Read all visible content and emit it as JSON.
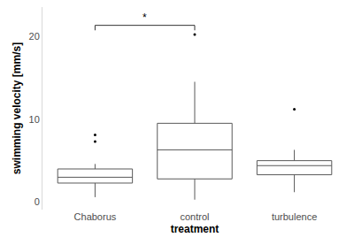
{
  "chart_data": {
    "type": "box",
    "x_label": "treatment",
    "y_label": "swimming velocity [mm/s]",
    "categories": [
      "Chaborus",
      "control",
      "turbulence"
    ],
    "boxes": [
      {
        "q1": 2.3,
        "median": 3.0,
        "q3": 4.0,
        "lower": 0.6,
        "upper": 4.6,
        "outliers": [
          7.3,
          8.1
        ]
      },
      {
        "q1": 2.8,
        "median": 6.3,
        "q3": 9.5,
        "lower": 0.3,
        "upper": 14.5,
        "outliers": [
          20.2
        ]
      },
      {
        "q1": 3.3,
        "median": 4.4,
        "q3": 5.0,
        "lower": 1.2,
        "upper": 6.3,
        "outliers": [
          11.2
        ]
      }
    ],
    "color": "#595959",
    "ylim": [
      -0.9,
      23.5
    ],
    "yticks": [
      0,
      10,
      20
    ],
    "grid": false,
    "annotations": [
      {
        "from": "Chaborus",
        "to": "control",
        "y": 21.3,
        "text": "*"
      }
    ]
  }
}
